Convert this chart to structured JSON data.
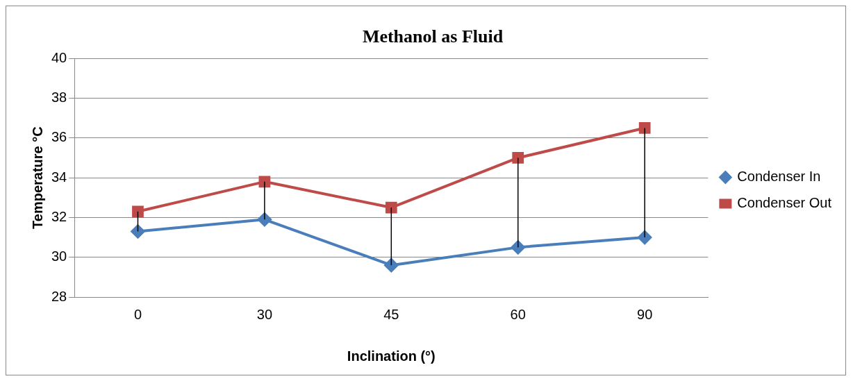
{
  "chart_data": {
    "type": "line",
    "title": "Methanol as Fluid",
    "xlabel": "Inclination (°)",
    "ylabel": "Temperature °C",
    "categories": [
      "0",
      "30",
      "45",
      "60",
      "90"
    ],
    "series": [
      {
        "name": "Condenser In",
        "color": "#4a7ebb",
        "marker": "diamond",
        "values": [
          31.3,
          31.9,
          29.6,
          30.5,
          31.0
        ]
      },
      {
        "name": "Condenser Out",
        "color": "#be4b48",
        "marker": "square",
        "values": [
          32.3,
          33.8,
          32.5,
          35.0,
          36.5
        ],
        "errors": [
          [
            31.3,
            32.3
          ],
          [
            31.9,
            33.8
          ],
          [
            29.6,
            32.5
          ],
          [
            30.5,
            35.0
          ],
          [
            31.0,
            36.5
          ]
        ]
      }
    ],
    "ylim": [
      28,
      40
    ],
    "yticks": [
      28,
      30,
      32,
      34,
      36,
      38,
      40
    ],
    "grid": "y",
    "legend": "right"
  }
}
